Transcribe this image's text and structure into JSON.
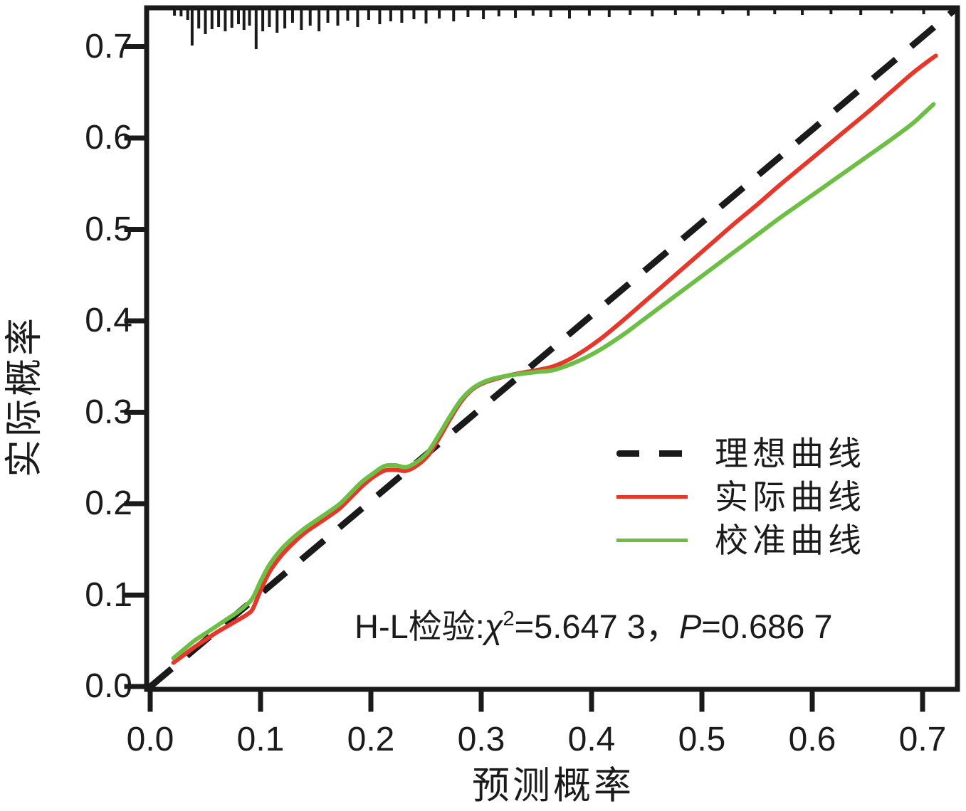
{
  "figure": {
    "background": "#ffffff",
    "ink_color": "#1a1a1a"
  },
  "chart_data": {
    "type": "line",
    "title": "",
    "xlabel": "预测概率",
    "ylabel": "实际概率",
    "xlim": [
      0.0,
      0.74
    ],
    "ylim": [
      0.0,
      0.745
    ],
    "grid": false,
    "legend_position": "inside right middle",
    "x_ticks": {
      "values": [
        0.0,
        0.1,
        0.2,
        0.3,
        0.4,
        0.5,
        0.6,
        0.7
      ],
      "labels": [
        "0.0",
        "0.1",
        "0.2",
        "0.3",
        "0.4",
        "0.5",
        "0.6",
        "0.7"
      ]
    },
    "y_ticks": {
      "values": [
        0.0,
        0.1,
        0.2,
        0.3,
        0.4,
        0.5,
        0.6,
        0.7
      ],
      "labels": [
        "0.0",
        "0.1",
        "0.2",
        "0.3",
        "0.4",
        "0.5",
        "0.6",
        "0.7"
      ]
    },
    "annotation": {
      "text_plain": "H-L检验:χ2=5.647 3，P=0.686 7",
      "prefix": "H-L检验:",
      "chi_symbol": "χ",
      "chi_superscript": "2",
      "chi_value": "=5.647 3，",
      "p_symbol": "P",
      "p_value": "=0.686 7"
    },
    "series": [
      {
        "name": "理想曲线",
        "role": "ideal-diagonal",
        "color": "#1a1a1a",
        "line_style": "dashed",
        "points": [
          [
            0.0,
            0.0
          ],
          [
            0.74,
            0.74
          ]
        ]
      },
      {
        "name": "实际曲线",
        "role": "actual",
        "color": "#e5382b",
        "line_style": "solid",
        "points": [
          [
            0.021,
            0.026
          ],
          [
            0.03,
            0.034
          ],
          [
            0.04,
            0.043
          ],
          [
            0.05,
            0.051
          ],
          [
            0.06,
            0.059
          ],
          [
            0.07,
            0.066
          ],
          [
            0.08,
            0.073
          ],
          [
            0.088,
            0.079
          ],
          [
            0.093,
            0.085
          ],
          [
            0.1,
            0.105
          ],
          [
            0.108,
            0.125
          ],
          [
            0.118,
            0.142
          ],
          [
            0.128,
            0.155
          ],
          [
            0.14,
            0.168
          ],
          [
            0.152,
            0.178
          ],
          [
            0.163,
            0.187
          ],
          [
            0.172,
            0.195
          ],
          [
            0.182,
            0.207
          ],
          [
            0.192,
            0.219
          ],
          [
            0.202,
            0.229
          ],
          [
            0.212,
            0.236
          ],
          [
            0.222,
            0.237
          ],
          [
            0.232,
            0.236
          ],
          [
            0.242,
            0.242
          ],
          [
            0.252,
            0.253
          ],
          [
            0.262,
            0.272
          ],
          [
            0.272,
            0.293
          ],
          [
            0.282,
            0.312
          ],
          [
            0.292,
            0.325
          ],
          [
            0.302,
            0.332
          ],
          [
            0.312,
            0.336
          ],
          [
            0.324,
            0.34
          ],
          [
            0.336,
            0.343
          ],
          [
            0.35,
            0.346
          ],
          [
            0.365,
            0.35
          ],
          [
            0.38,
            0.358
          ],
          [
            0.395,
            0.369
          ],
          [
            0.41,
            0.382
          ],
          [
            0.43,
            0.402
          ],
          [
            0.45,
            0.423
          ],
          [
            0.47,
            0.444
          ],
          [
            0.49,
            0.465
          ],
          [
            0.51,
            0.486
          ],
          [
            0.53,
            0.507
          ],
          [
            0.55,
            0.527
          ],
          [
            0.57,
            0.548
          ],
          [
            0.59,
            0.568
          ],
          [
            0.61,
            0.588
          ],
          [
            0.63,
            0.608
          ],
          [
            0.65,
            0.628
          ],
          [
            0.67,
            0.649
          ],
          [
            0.69,
            0.67
          ],
          [
            0.705,
            0.684
          ],
          [
            0.712,
            0.69
          ]
        ]
      },
      {
        "name": "校准曲线",
        "role": "calibration",
        "color": "#6dbe45",
        "line_style": "solid",
        "points": [
          [
            0.021,
            0.031
          ],
          [
            0.03,
            0.04
          ],
          [
            0.04,
            0.05
          ],
          [
            0.05,
            0.058
          ],
          [
            0.06,
            0.066
          ],
          [
            0.07,
            0.074
          ],
          [
            0.08,
            0.082
          ],
          [
            0.087,
            0.089
          ],
          [
            0.093,
            0.097
          ],
          [
            0.1,
            0.115
          ],
          [
            0.108,
            0.133
          ],
          [
            0.118,
            0.149
          ],
          [
            0.128,
            0.161
          ],
          [
            0.14,
            0.173
          ],
          [
            0.152,
            0.183
          ],
          [
            0.163,
            0.192
          ],
          [
            0.172,
            0.2
          ],
          [
            0.182,
            0.212
          ],
          [
            0.192,
            0.224
          ],
          [
            0.202,
            0.233
          ],
          [
            0.212,
            0.241
          ],
          [
            0.222,
            0.242
          ],
          [
            0.232,
            0.24
          ],
          [
            0.242,
            0.246
          ],
          [
            0.252,
            0.257
          ],
          [
            0.262,
            0.276
          ],
          [
            0.272,
            0.296
          ],
          [
            0.282,
            0.314
          ],
          [
            0.292,
            0.326
          ],
          [
            0.302,
            0.333
          ],
          [
            0.312,
            0.337
          ],
          [
            0.324,
            0.34
          ],
          [
            0.336,
            0.342
          ],
          [
            0.35,
            0.344
          ],
          [
            0.365,
            0.346
          ],
          [
            0.38,
            0.352
          ],
          [
            0.395,
            0.36
          ],
          [
            0.41,
            0.37
          ],
          [
            0.43,
            0.386
          ],
          [
            0.45,
            0.404
          ],
          [
            0.47,
            0.422
          ],
          [
            0.49,
            0.44
          ],
          [
            0.51,
            0.458
          ],
          [
            0.53,
            0.476
          ],
          [
            0.55,
            0.494
          ],
          [
            0.57,
            0.512
          ],
          [
            0.59,
            0.529
          ],
          [
            0.61,
            0.546
          ],
          [
            0.63,
            0.563
          ],
          [
            0.65,
            0.58
          ],
          [
            0.67,
            0.597
          ],
          [
            0.69,
            0.615
          ],
          [
            0.702,
            0.628
          ],
          [
            0.71,
            0.637
          ]
        ]
      }
    ],
    "rug": {
      "side": "top",
      "color": "#1a1a1a",
      "marks": [
        [
          0.022,
          8
        ],
        [
          0.028,
          9
        ],
        [
          0.034,
          14
        ],
        [
          0.038,
          50
        ],
        [
          0.044,
          26
        ],
        [
          0.05,
          34
        ],
        [
          0.056,
          27
        ],
        [
          0.062,
          24
        ],
        [
          0.068,
          30
        ],
        [
          0.074,
          25
        ],
        [
          0.08,
          20
        ],
        [
          0.085,
          28
        ],
        [
          0.09,
          22
        ],
        [
          0.096,
          55
        ],
        [
          0.102,
          30
        ],
        [
          0.108,
          24
        ],
        [
          0.115,
          32
        ],
        [
          0.122,
          26
        ],
        [
          0.129,
          18
        ],
        [
          0.137,
          28
        ],
        [
          0.145,
          22
        ],
        [
          0.153,
          30
        ],
        [
          0.161,
          18
        ],
        [
          0.17,
          22
        ],
        [
          0.179,
          15
        ],
        [
          0.188,
          24
        ],
        [
          0.198,
          14
        ],
        [
          0.208,
          20
        ],
        [
          0.218,
          16
        ],
        [
          0.228,
          18
        ],
        [
          0.239,
          13
        ],
        [
          0.25,
          19
        ],
        [
          0.262,
          12
        ],
        [
          0.275,
          16
        ],
        [
          0.288,
          10
        ],
        [
          0.302,
          13
        ],
        [
          0.316,
          9
        ],
        [
          0.331,
          11
        ],
        [
          0.347,
          8
        ],
        [
          0.363,
          10
        ],
        [
          0.38,
          12
        ],
        [
          0.398,
          8
        ],
        [
          0.416,
          10
        ],
        [
          0.435,
          7
        ],
        [
          0.455,
          9
        ],
        [
          0.476,
          7
        ],
        [
          0.497,
          8
        ],
        [
          0.519,
          6
        ],
        [
          0.542,
          8
        ],
        [
          0.566,
          6
        ],
        [
          0.591,
          7
        ],
        [
          0.617,
          6
        ],
        [
          0.644,
          7
        ],
        [
          0.672,
          5
        ],
        [
          0.701,
          6
        ]
      ]
    }
  }
}
